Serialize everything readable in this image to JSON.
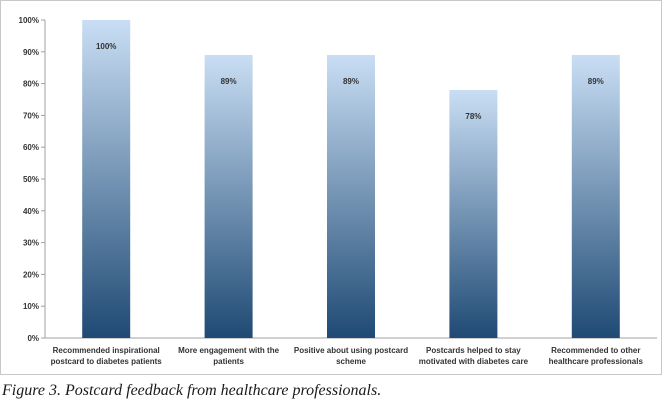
{
  "caption": "Figure 3. Postcard feedback from healthcare professionals.",
  "chart_data": {
    "type": "bar",
    "categories": [
      [
        "Recommended  inspirational",
        "postcard to diabetes patients"
      ],
      [
        "More engagement with the",
        "patients"
      ],
      [
        "Positive about using postcard",
        "scheme"
      ],
      [
        "Postcards helped to stay",
        "motivated with diabetes care"
      ],
      [
        "Recommended to other",
        "healthcare professionals"
      ]
    ],
    "values": [
      100,
      89,
      89,
      78,
      89
    ],
    "data_labels": [
      "100%",
      "89%",
      "89%",
      "78%",
      "89%"
    ],
    "ylim": [
      0,
      100
    ],
    "yticks": [
      0,
      10,
      20,
      30,
      40,
      50,
      60,
      70,
      80,
      90,
      100
    ],
    "ytick_labels": [
      "0%",
      "10%",
      "20%",
      "30%",
      "40%",
      "50%",
      "60%",
      "70%",
      "80%",
      "90%",
      "100%"
    ],
    "bar_color_top": "#c9def4",
    "bar_color_bottom": "#1f4a74",
    "axis_color": "#a0a0a0",
    "grid": false,
    "legend": "none",
    "title": "",
    "xlabel": "",
    "ylabel": ""
  }
}
